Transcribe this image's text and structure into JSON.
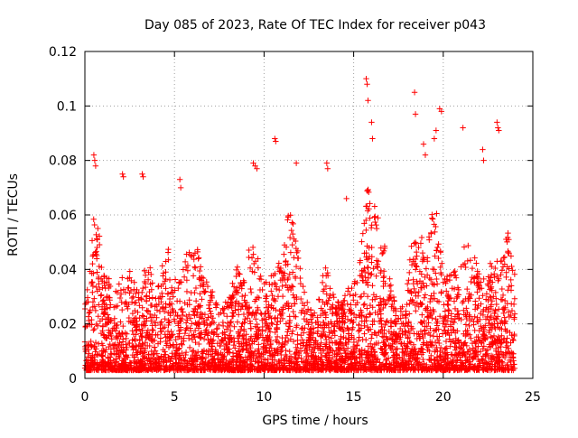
{
  "chart_data": {
    "type": "scatter",
    "title": "Day 085 of 2023, Rate Of TEC Index for receiver p043",
    "xlabel": "GPS time / hours",
    "ylabel": "ROTI / TECUs",
    "xlim": [
      0,
      25
    ],
    "ylim": [
      0,
      0.12
    ],
    "xticks": [
      0,
      5,
      10,
      15,
      20,
      25
    ],
    "xtick_labels": [
      "0",
      "5",
      "10",
      "15",
      "20",
      "25"
    ],
    "yticks": [
      0,
      0.02,
      0.04,
      0.06,
      0.08,
      0.1,
      0.12
    ],
    "ytick_labels": [
      "0",
      "0.02",
      "0.04",
      "0.06",
      "0.08",
      "0.1",
      "0.12"
    ],
    "grid": true,
    "marker": "plus",
    "marker_color": "#ff0000",
    "series": [
      {
        "x": [
          0.5,
          0.55,
          0.6,
          2.1,
          2.15,
          3.2,
          3.25,
          5.3,
          5.35,
          9.4,
          9.5,
          9.6,
          10.6,
          10.65,
          11.8,
          13.5,
          13.55,
          14.6,
          15.7,
          15.75,
          15.8,
          16.0,
          16.05,
          18.4,
          18.45,
          18.9,
          19.0,
          19.5,
          19.6,
          19.8,
          19.9,
          21.1,
          22.2,
          22.25,
          23.0,
          23.05,
          23.1
        ],
        "y": [
          0.082,
          0.08,
          0.078,
          0.075,
          0.074,
          0.075,
          0.074,
          0.073,
          0.07,
          0.079,
          0.078,
          0.077,
          0.088,
          0.087,
          0.079,
          0.079,
          0.077,
          0.066,
          0.11,
          0.108,
          0.102,
          0.094,
          0.088,
          0.105,
          0.097,
          0.086,
          0.082,
          0.088,
          0.091,
          0.099,
          0.098,
          0.092,
          0.084,
          0.08,
          0.094,
          0.092,
          0.091
        ]
      }
    ]
  }
}
